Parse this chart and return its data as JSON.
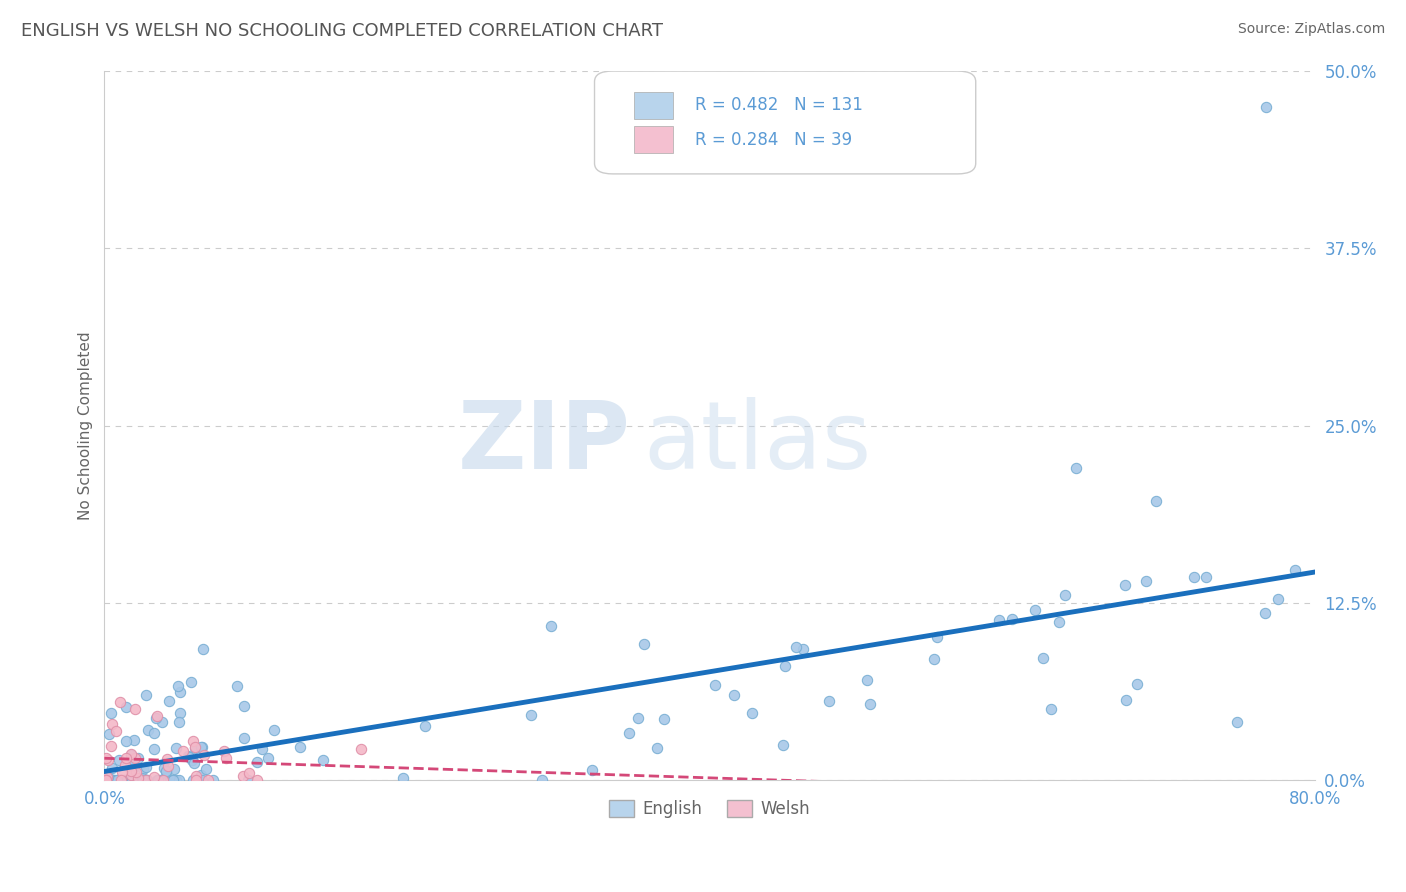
{
  "title": "ENGLISH VS WELSH NO SCHOOLING COMPLETED CORRELATION CHART",
  "source": "Source: ZipAtlas.com",
  "ylabel": "No Schooling Completed",
  "xlim": [
    0.0,
    0.8
  ],
  "ylim": [
    0.0,
    0.5
  ],
  "yticks": [
    0.0,
    0.125,
    0.25,
    0.375,
    0.5
  ],
  "ytick_labels": [
    "0.0%",
    "12.5%",
    "25.0%",
    "37.5%",
    "50.0%"
  ],
  "english_color": "#a8c8e8",
  "english_edge_color": "#7aafd4",
  "english_line_color": "#1a6fbd",
  "welsh_color": "#f4b8c8",
  "welsh_edge_color": "#e090a8",
  "welsh_line_color": "#d44878",
  "english_R": 0.482,
  "english_N": 131,
  "welsh_R": 0.284,
  "welsh_N": 39,
  "watermark_zip": "ZIP",
  "watermark_atlas": "atlas",
  "background_color": "#ffffff",
  "grid_color": "#cccccc",
  "title_color": "#555555",
  "axis_label_color": "#666666",
  "tick_color": "#5b9bd5",
  "legend_box_color_english": "#b8d4ec",
  "legend_box_color_welsh": "#f4c0d0"
}
